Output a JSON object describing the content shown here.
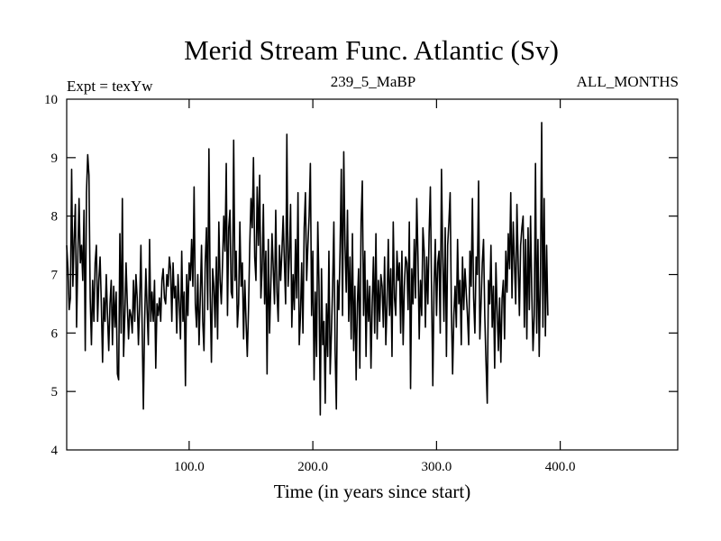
{
  "chart_data": {
    "type": "line",
    "title": "Merid Stream Func. Atlantic (Sv)",
    "left_note": "Expt = texYw",
    "center_note": "239_5_MaBP",
    "right_note": "ALL_MONTHS",
    "xlabel": "Time (in years since start)",
    "ylabel": "",
    "xlim": [
      1,
      495
    ],
    "ylim": [
      4,
      10
    ],
    "xticks": [
      100,
      200,
      300,
      400
    ],
    "xtick_labels": [
      "100.0",
      "200.0",
      "300.0",
      "400.0"
    ],
    "yticks": [
      4,
      5,
      6,
      7,
      8,
      9,
      10
    ],
    "ytick_labels": [
      "4",
      "5",
      "6",
      "7",
      "8",
      "9",
      "10"
    ],
    "grid": false,
    "series": [
      {
        "color": "#000000",
        "x_start": 1,
        "x_step": 1,
        "values": [
          7.5,
          7.1,
          6.4,
          6.6,
          8.8,
          6.8,
          7.6,
          8.2,
          6.1,
          7.3,
          8.3,
          7.2,
          7.5,
          6.9,
          8.1,
          5.7,
          8.4,
          9.05,
          8.7,
          6.6,
          5.8,
          6.9,
          6.2,
          7.2,
          7.5,
          6.2,
          6.9,
          7.3,
          6.5,
          5.5,
          6.6,
          6.2,
          7.0,
          6.3,
          5.7,
          6.5,
          6.9,
          5.8,
          6.8,
          6.1,
          6.7,
          5.3,
          5.2,
          7.7,
          6.0,
          8.3,
          5.6,
          6.3,
          7.2,
          6.5,
          5.9,
          6.4,
          6.3,
          6.0,
          6.9,
          6.2,
          7.0,
          6.6,
          5.8,
          6.5,
          7.5,
          6.1,
          4.7,
          6.2,
          7.1,
          6.4,
          5.8,
          7.6,
          6.2,
          6.7,
          6.2,
          6.9,
          5.4,
          6.5,
          6.3,
          6.6,
          6.2,
          6.9,
          7.1,
          6.6,
          6.5,
          7.0,
          6.8,
          7.3,
          7.1,
          6.2,
          7.2,
          6.6,
          6.8,
          6.0,
          7.0,
          6.5,
          5.9,
          7.4,
          6.2,
          6.7,
          5.1,
          7.0,
          6.3,
          7.2,
          6.9,
          7.6,
          6.8,
          8.5,
          6.5,
          6.1,
          7.0,
          5.8,
          6.6,
          7.5,
          6.2,
          5.7,
          7.2,
          7.8,
          6.4,
          9.15,
          6.7,
          5.5,
          7.1,
          6.8,
          6.1,
          7.3,
          5.9,
          7.9,
          6.9,
          6.5,
          7.2,
          8.0,
          7.4,
          8.9,
          6.3,
          7.8,
          8.1,
          6.7,
          6.6,
          9.3,
          6.9,
          7.4,
          6.1,
          6.5,
          7.9,
          6.8,
          7.2,
          5.9,
          6.9,
          6.2,
          5.6,
          6.4,
          7.5,
          8.3,
          7.8,
          9.0,
          7.3,
          6.9,
          8.5,
          7.5,
          8.7,
          6.6,
          7.1,
          8.2,
          6.5,
          7.4,
          5.3,
          7.6,
          6.0,
          6.8,
          7.7,
          7.1,
          6.5,
          8.1,
          6.7,
          6.2,
          7.5,
          6.9,
          7.4,
          8.0,
          7.2,
          6.5,
          9.4,
          6.8,
          7.3,
          8.2,
          6.1,
          7.0,
          6.4,
          7.6,
          6.6,
          8.4,
          5.8,
          6.3,
          7.2,
          6.0,
          7.8,
          8.4,
          6.9,
          7.5,
          8.0,
          8.9,
          6.3,
          7.4,
          5.2,
          6.7,
          5.6,
          7.9,
          6.8,
          4.6,
          7.1,
          5.8,
          6.2,
          4.8,
          6.5,
          5.6,
          7.4,
          5.3,
          6.0,
          6.8,
          7.9,
          5.7,
          4.7,
          6.9,
          6.4,
          7.4,
          8.8,
          6.3,
          9.1,
          7.5,
          6.7,
          8.1,
          6.2,
          7.3,
          5.9,
          7.7,
          5.7,
          6.8,
          5.2,
          6.5,
          7.1,
          5.4,
          7.9,
          8.6,
          6.3,
          7.4,
          5.6,
          6.9,
          6.2,
          6.8,
          5.4,
          6.5,
          7.3,
          6.0,
          7.7,
          5.9,
          6.9,
          6.2,
          7.0,
          6.8,
          6.1,
          7.3,
          5.8,
          6.5,
          7.6,
          6.3,
          7.1,
          5.6,
          7.9,
          6.6,
          6.3,
          7.4,
          6.9,
          7.2,
          6.0,
          7.4,
          5.8,
          6.8,
          7.3,
          7.2,
          6.4,
          7.9,
          5.05,
          7.1,
          6.5,
          7.6,
          6.6,
          8.3,
          7.3,
          5.9,
          6.9,
          6.3,
          7.8,
          7.4,
          6.1,
          7.3,
          6.5,
          7.7,
          8.5,
          6.7,
          5.1,
          6.8,
          7.6,
          6.3,
          7.2,
          7.4,
          6.0,
          8.8,
          7.3,
          6.2,
          7.8,
          5.6,
          7.5,
          7.9,
          8.4,
          6.4,
          5.3,
          6.3,
          6.8,
          6.1,
          7.6,
          6.5,
          6.9,
          5.8,
          7.3,
          6.4,
          7.1,
          6.7,
          6.3,
          5.8,
          7.4,
          6.8,
          8.3,
          6.6,
          6.0,
          7.3,
          7.0,
          8.6,
          5.9,
          6.5,
          7.2,
          7.6,
          6.3,
          5.5,
          4.8,
          6.9,
          6.5,
          7.5,
          6.1,
          6.8,
          5.4,
          7.2,
          6.4,
          5.7,
          6.6,
          5.5,
          6.6,
          6.9,
          5.9,
          7.4,
          6.7,
          7.7,
          7.1,
          8.4,
          6.6,
          7.9,
          7.2,
          6.5,
          8.2,
          7.2,
          6.3,
          7.5,
          7.8,
          8.0,
          6.1,
          7.6,
          5.9,
          7.8,
          6.4,
          8.0,
          6.7,
          5.7,
          6.3,
          8.9,
          6.0,
          7.6,
          5.6,
          6.9,
          9.6,
          6.1,
          8.3,
          5.95,
          7.5,
          6.3
        ]
      }
    ]
  }
}
